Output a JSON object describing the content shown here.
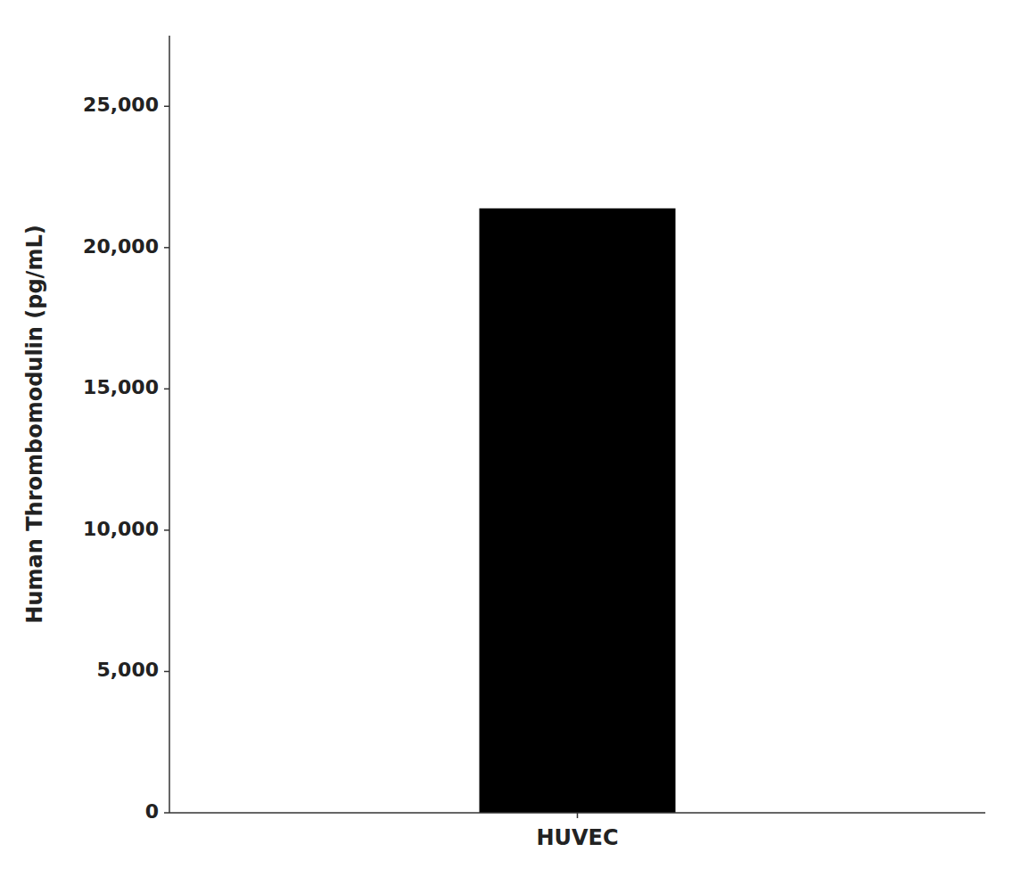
{
  "chart_data": {
    "type": "bar",
    "categories": [
      "HUVEC"
    ],
    "values": [
      21389.33
    ],
    "color": "#000000",
    "ylabel": "Human Thrombomodulin (pg/mL)",
    "ylim": [
      0,
      27500
    ],
    "yticks": [
      0,
      {
        "value": 5000,
        "label": "5,000"
      },
      {
        "value": 10000,
        "label": "10,000"
      },
      {
        "value": 15000,
        "label": "15,000"
      },
      {
        "value": 20000,
        "label": "20,000"
      },
      {
        "value": 25000,
        "label": "25,000"
      }
    ],
    "grid": false
  }
}
